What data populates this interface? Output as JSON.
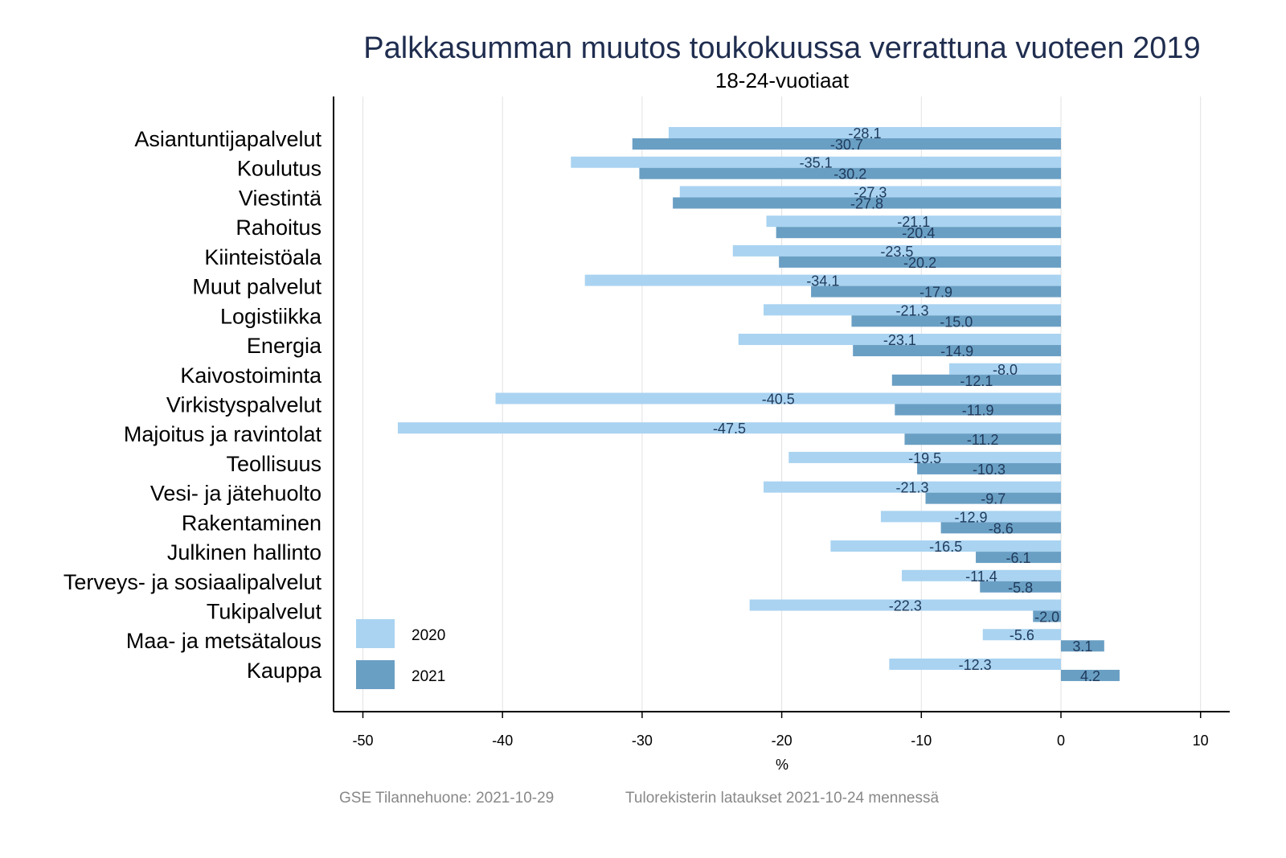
{
  "chart_data": {
    "type": "bar",
    "orientation": "horizontal",
    "title": "Palkkasumman muutos toukokuussa verrattuna vuoteen 2019",
    "subtitle": "18-24-vuotiaat",
    "xlabel": "%",
    "ylabel": "",
    "xlim": [
      -52,
      12
    ],
    "xticks": [
      -50,
      -40,
      -30,
      -20,
      -10,
      0,
      10
    ],
    "grid": true,
    "legend_position": "bottom-left",
    "categories": [
      "Asiantuntijapalvelut",
      "Koulutus",
      "Viestintä",
      "Rahoitus",
      "Kiinteistöala",
      "Muut palvelut",
      "Logistiikka",
      "Energia",
      "Kaivostoiminta",
      "Virkistyspalvelut",
      "Majoitus ja ravintolat",
      "Teollisuus",
      "Vesi- ja jätehuolto",
      "Rakentaminen",
      "Julkinen hallinto",
      "Terveys- ja sosiaalipalvelut",
      "Tukipalvelut",
      "Maa- ja metsätalous",
      "Kauppa"
    ],
    "series": [
      {
        "name": "2020",
        "color": "#a9d3f1",
        "values": [
          -28.1,
          -35.1,
          -27.3,
          -21.1,
          -23.5,
          -34.1,
          -21.3,
          -23.1,
          -8.0,
          -40.5,
          -47.5,
          -19.5,
          -21.3,
          -12.9,
          -16.5,
          -11.4,
          -22.3,
          -5.6,
          -12.3
        ]
      },
      {
        "name": "2021",
        "color": "#6a9fc4",
        "values": [
          -30.7,
          -30.2,
          -27.8,
          -20.4,
          -20.2,
          -17.9,
          -15.0,
          -14.9,
          -12.1,
          -11.9,
          -11.2,
          -10.3,
          -9.7,
          -8.6,
          -6.1,
          -5.8,
          -2.0,
          3.1,
          4.2
        ]
      }
    ]
  },
  "footer": {
    "source": "GSE Tilannehuone: 2021-10-29",
    "note": "Tulorekisterin lataukset 2021-10-24 mennessä"
  }
}
